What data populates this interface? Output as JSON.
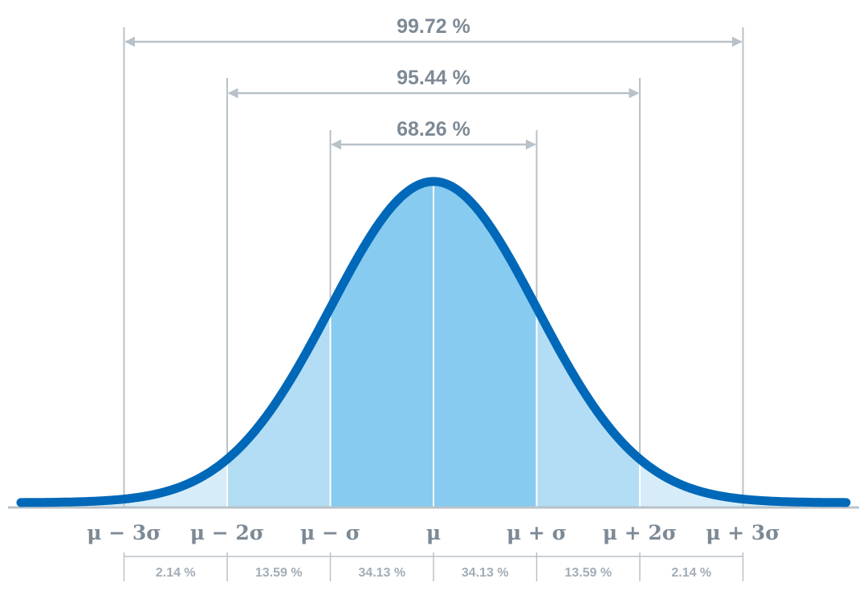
{
  "colors": {
    "curve": "#0068b8",
    "fill_center": "#87cbf0",
    "fill_middle": "#b3ddf4",
    "fill_outer": "#d6edf9",
    "guide_line": "#b9c2c9",
    "axis": "#b9c2c9",
    "label": "#7d8a95",
    "segment_label": "#a3adb6"
  },
  "ranges": [
    {
      "label": "99.72 %",
      "from": -3,
      "to": 3
    },
    {
      "label": "95.44 %",
      "from": -2,
      "to": 2
    },
    {
      "label": "68.26 %",
      "from": -1,
      "to": 1
    }
  ],
  "axis_labels": [
    "μ − 3σ",
    "μ − 2σ",
    "μ − σ",
    "μ",
    "μ + σ",
    "μ + 2σ",
    "μ + 3σ"
  ],
  "segments": [
    {
      "label": "2.14 %",
      "from": -3,
      "to": -2
    },
    {
      "label": "13.59 %",
      "from": -2,
      "to": -1
    },
    {
      "label": "34.13 %",
      "from": -1,
      "to": 0
    },
    {
      "label": "34.13 %",
      "from": 0,
      "to": 1
    },
    {
      "label": "13.59 %",
      "from": 1,
      "to": 2
    },
    {
      "label": "2.14 %",
      "from": 2,
      "to": 3
    }
  ]
}
